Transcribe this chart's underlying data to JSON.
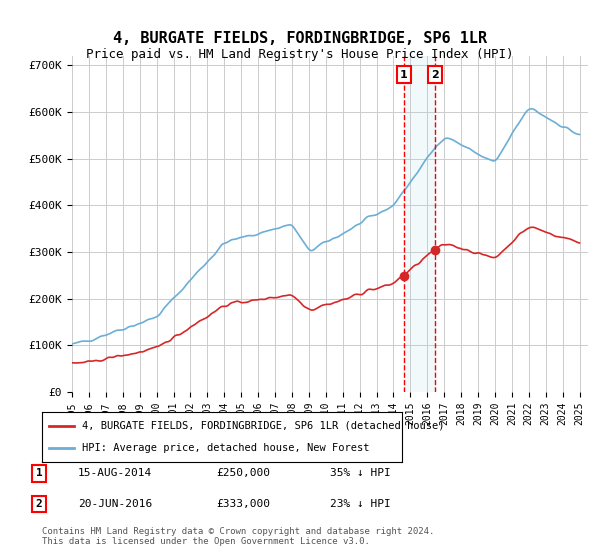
{
  "title": "4, BURGATE FIELDS, FORDINGBRIDGE, SP6 1LR",
  "subtitle": "Price paid vs. HM Land Registry's House Price Index (HPI)",
  "ylabel_ticks": [
    "£0",
    "£100K",
    "£200K",
    "£300K",
    "£400K",
    "£500K",
    "£600K",
    "£700K"
  ],
  "ytick_values": [
    0,
    100000,
    200000,
    300000,
    400000,
    500000,
    600000,
    700000
  ],
  "ylim": [
    0,
    720000
  ],
  "legend_line1": "4, BURGATE FIELDS, FORDINGBRIDGE, SP6 1LR (detached house)",
  "legend_line2": "HPI: Average price, detached house, New Forest",
  "transaction1_date": "15-AUG-2014",
  "transaction1_price": "£250,000",
  "transaction1_hpi": "35% ↓ HPI",
  "transaction2_date": "20-JUN-2016",
  "transaction2_price": "£333,000",
  "transaction2_hpi": "23% ↓ HPI",
  "footnote": "Contains HM Land Registry data © Crown copyright and database right 2024.\nThis data is licensed under the Open Government Licence v3.0.",
  "hpi_color": "#6baed6",
  "price_color": "#d62728",
  "marker1_year": 2014.625,
  "marker2_year": 2016.458,
  "background_color": "#ffffff",
  "grid_color": "#cccccc"
}
